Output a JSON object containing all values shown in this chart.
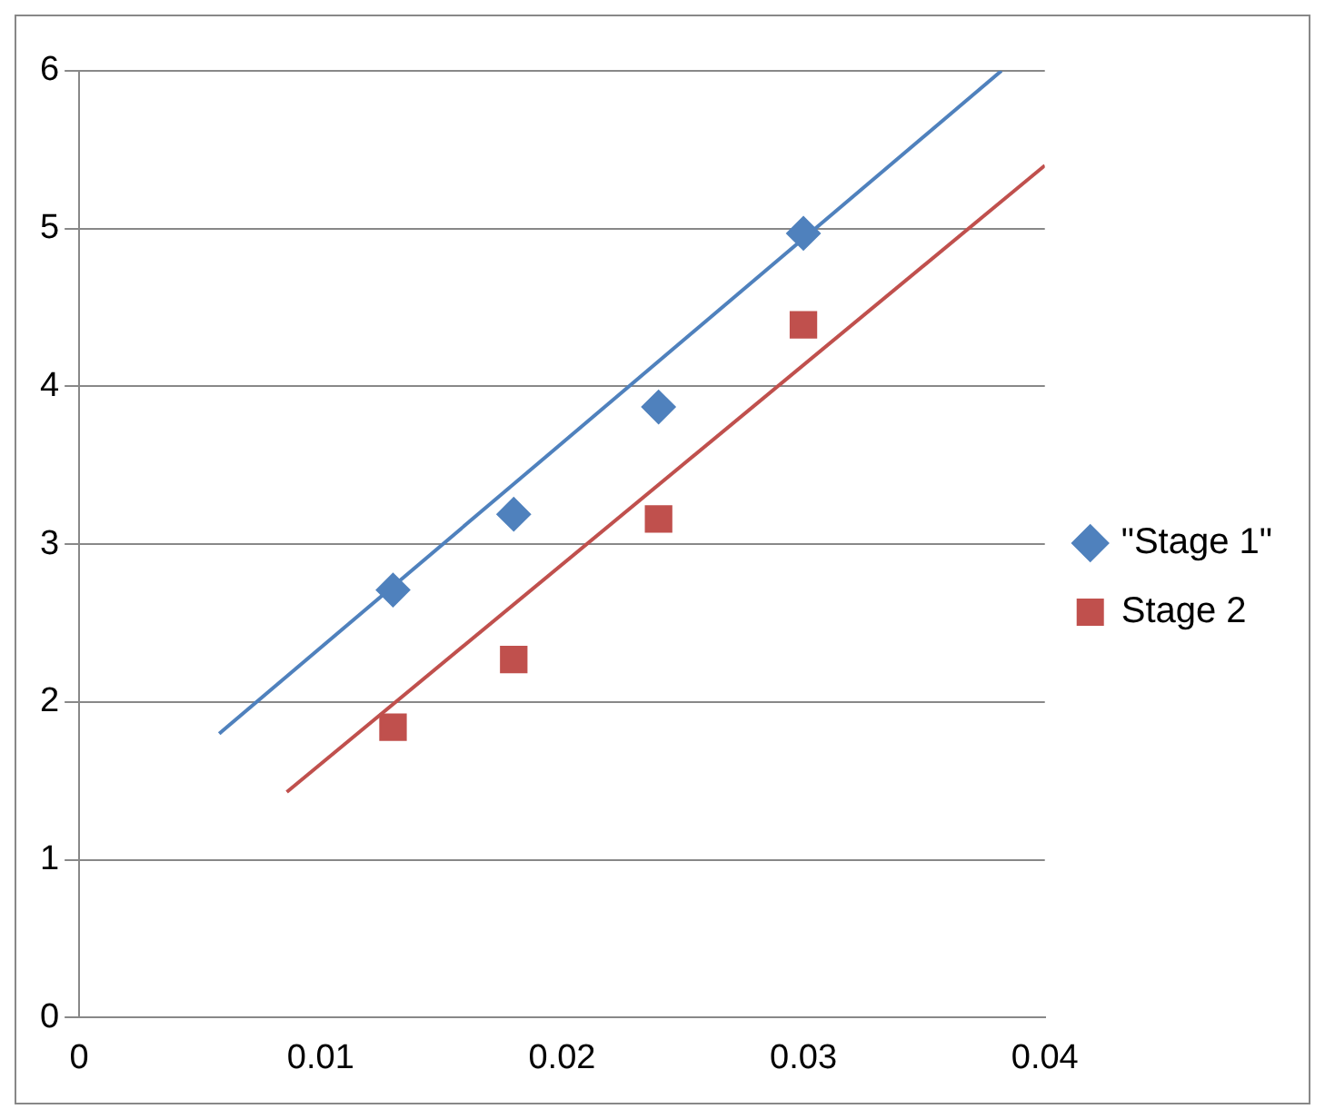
{
  "chart_data": {
    "type": "scatter",
    "xlim": [
      0,
      0.04
    ],
    "xticks": [
      0,
      0.01,
      0.02,
      0.03,
      0.04
    ],
    "ylim": [
      0,
      6
    ],
    "yticks": [
      0,
      1,
      2,
      3,
      4,
      5,
      6
    ],
    "grid": "y",
    "legend": "right",
    "series": [
      {
        "name": "\"Stage 1\"",
        "marker": "diamond",
        "color": "#4f81bd",
        "x": [
          0.013,
          0.018,
          0.024,
          0.03
        ],
        "values": [
          2.71,
          3.19,
          3.87,
          4.97
        ]
      },
      {
        "name": "Stage 2",
        "marker": "square",
        "color": "#c0504d",
        "x": [
          0.013,
          0.018,
          0.024,
          0.03
        ],
        "values": [
          1.84,
          2.27,
          3.16,
          4.39
        ]
      },
      {
        "type": "line",
        "color": "#4f81bd",
        "x": [
          0.0058,
          0.0382
        ],
        "values": [
          1.8,
          6.0
        ]
      },
      {
        "type": "line",
        "color": "#c0504d",
        "x": [
          0.0086,
          0.04
        ],
        "values": [
          1.43,
          5.4
        ]
      }
    ]
  }
}
